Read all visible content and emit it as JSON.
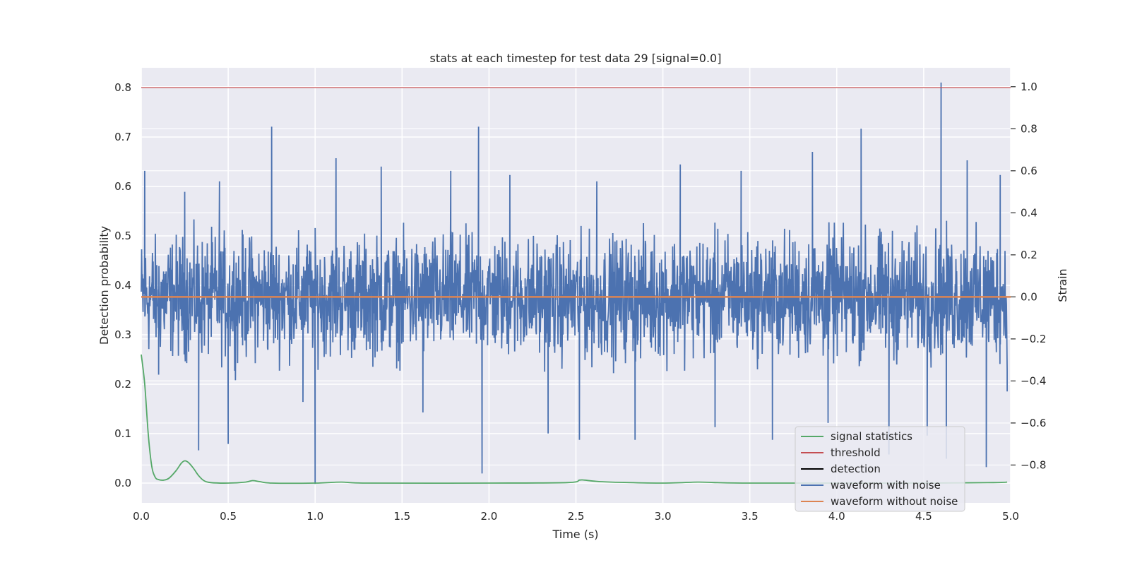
{
  "chart_data": {
    "type": "line",
    "title": "stats at each timestep for test data 29 [signal=0.0]",
    "xlabel": "Time (s)",
    "ylabel_left": "Detection probability",
    "ylabel_right": "Strain",
    "xlim": [
      0.0,
      5.0
    ],
    "ylim_left": [
      -0.04,
      0.84
    ],
    "ylim_right": [
      -0.98,
      1.09
    ],
    "x_ticks": [
      "0.0",
      "0.5",
      "1.0",
      "1.5",
      "2.0",
      "2.5",
      "3.0",
      "3.5",
      "4.0",
      "4.5",
      "5.0"
    ],
    "y_ticks_left": [
      "0.0",
      "0.1",
      "0.2",
      "0.3",
      "0.4",
      "0.5",
      "0.6",
      "0.7",
      "0.8"
    ],
    "y_ticks_right": [
      "−0.8",
      "−0.6",
      "−0.4",
      "−0.2",
      "0.0",
      "0.2",
      "0.4",
      "0.6",
      "0.8",
      "1.0"
    ],
    "grid": true,
    "legend_position": "bottom-right",
    "series": [
      {
        "name": "signal statistics",
        "axis": "left",
        "color": "#55a868",
        "x": [
          0.0,
          0.02,
          0.04,
          0.06,
          0.08,
          0.1,
          0.13,
          0.16,
          0.2,
          0.23,
          0.25,
          0.27,
          0.3,
          0.33,
          0.36,
          0.4,
          0.5,
          0.6,
          0.64,
          0.68,
          0.75,
          1.0,
          1.15,
          1.3,
          2.0,
          2.45,
          2.52,
          2.55,
          2.6,
          2.7,
          3.0,
          3.2,
          3.3,
          3.5,
          4.0,
          4.5,
          4.9,
          4.98
        ],
        "y": [
          0.26,
          0.2,
          0.1,
          0.035,
          0.012,
          0.007,
          0.006,
          0.01,
          0.025,
          0.04,
          0.045,
          0.042,
          0.03,
          0.015,
          0.005,
          0.001,
          0.0,
          0.002,
          0.005,
          0.003,
          0.0,
          0.0,
          0.002,
          0.0,
          0.0,
          0.001,
          0.006,
          0.006,
          0.004,
          0.002,
          0.0,
          0.002,
          0.001,
          0.0,
          0.0,
          0.0,
          0.001,
          0.002
        ]
      },
      {
        "name": "threshold",
        "axis": "left",
        "color": "#c44e52",
        "x": [
          0.0,
          5.0
        ],
        "y": [
          0.8,
          0.8
        ]
      },
      {
        "name": "detection",
        "axis": "left",
        "color": "#000000",
        "x": [],
        "y": []
      },
      {
        "name": "waveform with noise",
        "axis": "right",
        "color": "#4c72b0",
        "envelope_x": [
          0.0,
          0.5,
          1.0,
          1.5,
          2.0,
          2.5,
          3.0,
          3.5,
          4.0,
          4.5,
          5.0
        ],
        "envelope_upper": [
          0.4,
          0.42,
          0.4,
          0.41,
          0.42,
          0.4,
          0.43,
          0.42,
          0.44,
          0.43,
          0.42
        ],
        "envelope_lower": [
          -0.4,
          -0.42,
          -0.4,
          -0.42,
          -0.41,
          -0.43,
          -0.42,
          -0.41,
          -0.43,
          -0.42,
          -0.43
        ],
        "peaks_x": [
          0.02,
          0.1,
          0.25,
          0.33,
          0.45,
          0.5,
          0.75,
          0.93,
          1.0,
          1.12,
          1.38,
          1.62,
          1.78,
          1.94,
          1.96,
          2.12,
          2.34,
          2.52,
          2.62,
          2.84,
          3.1,
          3.3,
          3.45,
          3.63,
          3.86,
          3.95,
          4.14,
          4.3,
          4.52,
          4.6,
          4.63,
          4.75,
          4.86,
          4.94,
          4.98
        ],
        "peaks_y": [
          0.6,
          -0.37,
          0.5,
          -0.73,
          0.55,
          -0.7,
          0.81,
          -0.5,
          -0.89,
          0.66,
          0.62,
          -0.55,
          0.6,
          0.81,
          -0.84,
          0.58,
          -0.65,
          -0.68,
          0.55,
          -0.68,
          0.63,
          -0.62,
          0.6,
          -0.68,
          0.69,
          -0.6,
          0.8,
          -0.75,
          -0.66,
          1.02,
          -0.77,
          0.65,
          -0.81,
          0.58,
          -0.45
        ]
      },
      {
        "name": "waveform without noise",
        "axis": "right",
        "color": "#dd8452",
        "x": [
          0.0,
          5.0
        ],
        "y": [
          0.0,
          0.0
        ]
      }
    ]
  }
}
